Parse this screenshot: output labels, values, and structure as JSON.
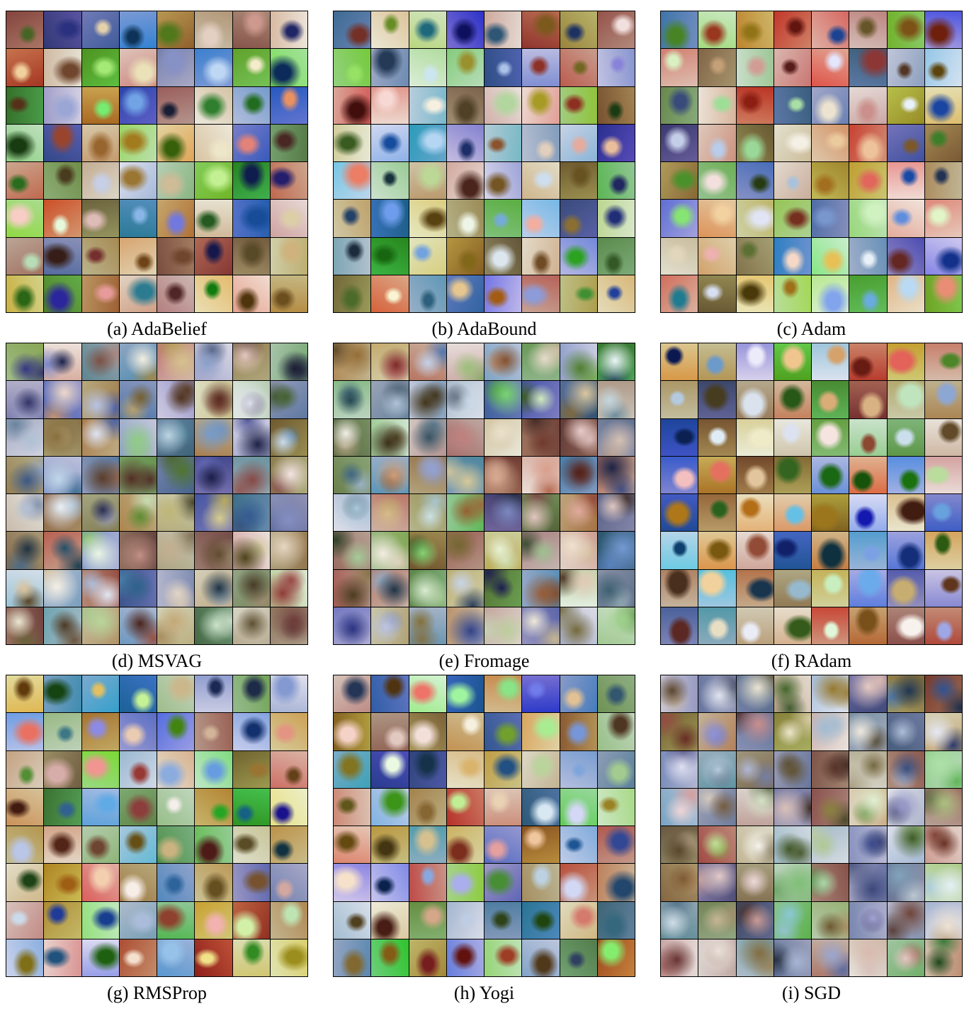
{
  "panels": [
    {
      "caption": "(a) AdaBelief",
      "style": "sharp"
    },
    {
      "caption": "(b) AdaBound",
      "style": "sharp"
    },
    {
      "caption": "(c) Adam",
      "style": "sharp"
    },
    {
      "caption": "(d) MSVAG",
      "style": "blurry"
    },
    {
      "caption": "(e) Fromage",
      "style": "blurry"
    },
    {
      "caption": "(f) RAdam",
      "style": "real"
    },
    {
      "caption": "(g) RMSProp",
      "style": "sharp"
    },
    {
      "caption": "(h) Yogi",
      "style": "sharp"
    },
    {
      "caption": "(i) SGD",
      "style": "blurry"
    }
  ],
  "grid_rows": 8,
  "grid_cols": 8
}
